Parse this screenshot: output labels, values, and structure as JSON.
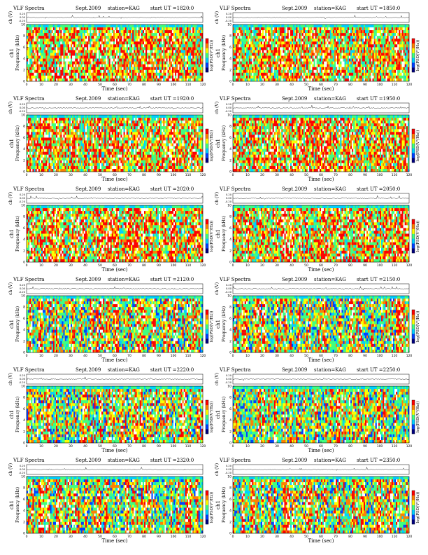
{
  "page": {
    "panels": [
      {
        "title": "VLF Spectra",
        "date": "Sept.2009",
        "station": "station=KAG",
        "start": "start  UT =1820:0",
        "ch": "ch1",
        "xlabel": "Time (sec)",
        "ylabel_ts": "ch (V)",
        "ylabel_spec": "Frequency (kHz)",
        "cbar_label": "log(PSD(V²/Hz))"
      },
      {
        "title": "VLF Spectra",
        "date": "Sept.2009",
        "station": "station=KAG",
        "start": "start  UT =1850:0",
        "ch": "ch1",
        "xlabel": "Time (sec)",
        "ylabel_ts": "ch (V)",
        "ylabel_spec": "Frequency (kHz)",
        "cbar_label": "log(PSD(V²/Hz))"
      },
      {
        "title": "VLF Spectra",
        "date": "Sept.2009",
        "station": "station=KAG",
        "start": "start  UT =1920:0",
        "ch": "ch1",
        "xlabel": "Time (sec)",
        "ylabel_ts": "ch (V)",
        "ylabel_spec": "Frequency (kHz)",
        "cbar_label": "log(PSD(V²/Hz))"
      },
      {
        "title": "VLF Spectra",
        "date": "Sept.2009",
        "station": "station=KAG",
        "start": "start  UT =1950:0",
        "ch": "ch1",
        "xlabel": "Time (sec)",
        "ylabel_ts": "ch (V)",
        "ylabel_spec": "Frequency (kHz)",
        "cbar_label": "log(PSD(V²/Hz))"
      },
      {
        "title": "VLF Spectra",
        "date": "Sept.2009",
        "station": "station=KAG",
        "start": "start  UT =2020:0",
        "ch": "ch1",
        "xlabel": "Time (sec)",
        "ylabel_ts": "ch (V)",
        "ylabel_spec": "Frequency (kHz)",
        "cbar_label": "log(PSD(V²/Hz))"
      },
      {
        "title": "VLF Spectra",
        "date": "Sept.2009",
        "station": "station=KAG",
        "start": "start  UT =2050:0",
        "ch": "ch1",
        "xlabel": "Time (sec)",
        "ylabel_ts": "ch (V)",
        "ylabel_spec": "Frequency (kHz)",
        "cbar_label": "log(PSD(V²/Hz))"
      },
      {
        "title": "VLF Spectra",
        "date": "Sept.2009",
        "station": "station=KAG",
        "start": "start  UT =2120:0",
        "ch": "ch1",
        "xlabel": "Time (sec)",
        "ylabel_ts": "ch (V)",
        "ylabel_spec": "Frequency (kHz)",
        "cbar_label": "log(PSD(V²/Hz))"
      },
      {
        "title": "VLF Spectra",
        "date": "Sept.2009",
        "station": "station=KAG",
        "start": "start  UT =2150:0",
        "ch": "ch1",
        "xlabel": "Time (sec)",
        "ylabel_ts": "ch (V)",
        "ylabel_spec": "Frequency (kHz)",
        "cbar_label": "log(PSD(V²/Hz))"
      },
      {
        "title": "VLF Spectra",
        "date": "Sept.2009",
        "station": "station=KAG",
        "start": "start  UT =2220:0",
        "ch": "ch1",
        "xlabel": "Time (sec)",
        "ylabel_ts": "ch (V)",
        "ylabel_spec": "Frequency (kHz)",
        "cbar_label": "log(PSD(V²/Hz))"
      },
      {
        "title": "VLF Spectra",
        "date": "Sept.2009",
        "station": "station=KAG",
        "start": "start  UT =2250:0",
        "ch": "ch1",
        "xlabel": "Time (sec)",
        "ylabel_ts": "ch (V)",
        "ylabel_spec": "Frequency (kHz)",
        "cbar_label": "log(PSD(V²/Hz))"
      },
      {
        "title": "VLF Spectra",
        "date": "Sept.2009",
        "station": "station=KAG",
        "start": "start  UT =2320:0",
        "ch": "ch1",
        "xlabel": "Time (sec)",
        "ylabel_ts": "ch (V)",
        "ylabel_spec": "Frequency (kHz)",
        "cbar_label": "log(PSD(V²/Hz))"
      },
      {
        "title": "VLF Spectra",
        "date": "Sept.2009",
        "station": "station=KAG",
        "start": "start  UT =2350:0",
        "ch": "ch1",
        "xlabel": "Time (sec)",
        "ylabel_ts": "ch (V)",
        "ylabel_spec": "Frequency (kHz)",
        "cbar_label": "log(PSD(V²/Hz))"
      }
    ]
  },
  "chart_data": [
    {
      "type": "heatmap",
      "start_ut": "1820:0",
      "x": {
        "label": "Time (sec)",
        "range": [
          0,
          120
        ],
        "ticks": [
          0,
          10,
          20,
          30,
          40,
          50,
          60,
          70,
          80,
          90,
          100,
          110,
          120
        ]
      },
      "y": {
        "label": "Frequency (kHz)",
        "range": [
          0,
          10
        ],
        "ticks": [
          0,
          2,
          4,
          6,
          8,
          10
        ]
      },
      "timeseries": {
        "label": "ch (V)",
        "ticks": [
          "0.20",
          "0.00",
          "-0.20"
        ]
      },
      "colorbar": {
        "label": "log(PSD(V²/Hz))",
        "colors": [
          "#00007f",
          "#0040ff",
          "#00d0ff",
          "#40ff80",
          "#ffff00",
          "#ff8000",
          "#ff0000"
        ]
      }
    },
    {
      "type": "heatmap",
      "start_ut": "1850:0",
      "x": {
        "label": "Time (sec)",
        "range": [
          0,
          120
        ],
        "ticks": [
          0,
          10,
          20,
          30,
          40,
          50,
          60,
          70,
          80,
          90,
          100,
          110,
          120
        ]
      },
      "y": {
        "label": "Frequency (kHz)",
        "range": [
          0,
          10
        ],
        "ticks": [
          0,
          2,
          4,
          6,
          8,
          10
        ]
      },
      "timeseries": {
        "label": "ch (V)",
        "ticks": [
          "0.20",
          "0.00",
          "-0.20"
        ]
      },
      "colorbar": {
        "label": "log(PSD(V²/Hz))"
      }
    },
    {
      "type": "heatmap",
      "start_ut": "1920:0",
      "x": {
        "label": "Time (sec)",
        "range": [
          0,
          120
        ],
        "ticks": [
          0,
          10,
          20,
          30,
          40,
          50,
          60,
          70,
          80,
          90,
          100,
          110,
          120
        ]
      },
      "y": {
        "label": "Frequency (kHz)",
        "range": [
          0,
          10
        ],
        "ticks": [
          0,
          2,
          4,
          6,
          8,
          10
        ]
      },
      "timeseries": {
        "label": "ch (V)",
        "ticks": [
          "0.20",
          "0.00",
          "-0.20"
        ]
      },
      "colorbar": {
        "label": "log(PSD(V²/Hz))"
      }
    },
    {
      "type": "heatmap",
      "start_ut": "1950:0",
      "x": {
        "label": "Time (sec)",
        "range": [
          0,
          120
        ],
        "ticks": [
          0,
          10,
          20,
          30,
          40,
          50,
          60,
          70,
          80,
          90,
          100,
          110,
          120
        ]
      },
      "y": {
        "label": "Frequency (kHz)",
        "range": [
          0,
          10
        ],
        "ticks": [
          0,
          2,
          4,
          6,
          8,
          10
        ]
      },
      "timeseries": {
        "label": "ch (V)",
        "ticks": [
          "0.20",
          "0.00",
          "-0.20"
        ]
      },
      "colorbar": {
        "label": "log(PSD(V²/Hz))"
      }
    },
    {
      "type": "heatmap",
      "start_ut": "2020:0",
      "x": {
        "label": "Time (sec)",
        "range": [
          0,
          120
        ],
        "ticks": [
          0,
          10,
          20,
          30,
          40,
          50,
          60,
          70,
          80,
          90,
          100,
          110,
          120
        ]
      },
      "y": {
        "label": "Frequency (kHz)",
        "range": [
          0,
          10
        ],
        "ticks": [
          0,
          2,
          4,
          6,
          8,
          10
        ]
      },
      "timeseries": {
        "label": "ch (V)",
        "ticks": [
          "0.20",
          "0.00",
          "-0.20"
        ]
      },
      "colorbar": {
        "label": "log(PSD(V²/Hz))"
      }
    },
    {
      "type": "heatmap",
      "start_ut": "2050:0",
      "x": {
        "label": "Time (sec)",
        "range": [
          0,
          120
        ],
        "ticks": [
          0,
          10,
          20,
          30,
          40,
          50,
          60,
          70,
          80,
          90,
          100,
          110,
          120
        ]
      },
      "y": {
        "label": "Frequency (kHz)",
        "range": [
          0,
          10
        ],
        "ticks": [
          0,
          2,
          4,
          6,
          8,
          10
        ]
      },
      "timeseries": {
        "label": "ch (V)",
        "ticks": [
          "0.20",
          "0.00",
          "-0.20"
        ]
      },
      "colorbar": {
        "label": "log(PSD(V²/Hz))"
      }
    },
    {
      "type": "heatmap",
      "start_ut": "2120:0",
      "x": {
        "label": "Time (sec)",
        "range": [
          0,
          120
        ],
        "ticks": [
          0,
          10,
          20,
          30,
          40,
          50,
          60,
          70,
          80,
          90,
          100,
          110,
          120
        ]
      },
      "y": {
        "label": "Frequency (kHz)",
        "range": [
          0,
          10
        ],
        "ticks": [
          0,
          2,
          4,
          6,
          8,
          10
        ]
      },
      "timeseries": {
        "label": "ch (V)",
        "ticks": [
          "0.20",
          "0.00",
          "-0.20"
        ]
      },
      "colorbar": {
        "label": "log(PSD(V²/Hz))"
      }
    },
    {
      "type": "heatmap",
      "start_ut": "2150:0",
      "x": {
        "label": "Time (sec)",
        "range": [
          0,
          120
        ],
        "ticks": [
          0,
          10,
          20,
          30,
          40,
          50,
          60,
          70,
          80,
          90,
          100,
          110,
          120
        ]
      },
      "y": {
        "label": "Frequency (kHz)",
        "range": [
          0,
          10
        ],
        "ticks": [
          0,
          2,
          4,
          6,
          8,
          10
        ]
      },
      "timeseries": {
        "label": "ch (V)",
        "ticks": [
          "0.20",
          "0.00",
          "-0.20"
        ]
      },
      "colorbar": {
        "label": "log(PSD(V²/Hz))"
      }
    },
    {
      "type": "heatmap",
      "start_ut": "2220:0",
      "x": {
        "label": "Time (sec)",
        "range": [
          0,
          120
        ],
        "ticks": [
          0,
          10,
          20,
          30,
          40,
          50,
          60,
          70,
          80,
          90,
          100,
          110,
          120
        ]
      },
      "y": {
        "label": "Frequency (kHz)",
        "range": [
          0,
          10
        ],
        "ticks": [
          0,
          2,
          4,
          6,
          8,
          10
        ]
      },
      "timeseries": {
        "label": "ch (V)",
        "ticks": [
          "0.20",
          "0.00",
          "-0.20"
        ]
      },
      "colorbar": {
        "label": "log(PSD(V²/Hz))"
      }
    },
    {
      "type": "heatmap",
      "start_ut": "2250:0",
      "x": {
        "label": "Time (sec)",
        "range": [
          0,
          120
        ],
        "ticks": [
          0,
          10,
          20,
          30,
          40,
          50,
          60,
          70,
          80,
          90,
          100,
          110,
          120
        ]
      },
      "y": {
        "label": "Frequency (kHz)",
        "range": [
          0,
          10
        ],
        "ticks": [
          0,
          2,
          4,
          6,
          8,
          10
        ]
      },
      "timeseries": {
        "label": "ch (V)",
        "ticks": [
          "0.20",
          "0.00",
          "-0.20"
        ]
      },
      "colorbar": {
        "label": "log(PSD(V²/Hz))"
      }
    },
    {
      "type": "heatmap",
      "start_ut": "2320:0",
      "x": {
        "label": "Time (sec)",
        "range": [
          0,
          120
        ],
        "ticks": [
          0,
          10,
          20,
          30,
          40,
          50,
          60,
          70,
          80,
          90,
          100,
          110,
          120
        ]
      },
      "y": {
        "label": "Frequency (kHz)",
        "range": [
          0,
          10
        ],
        "ticks": [
          0,
          2,
          4,
          6,
          8,
          10
        ]
      },
      "timeseries": {
        "label": "ch (V)",
        "ticks": [
          "0.20",
          "0.00",
          "-0.20"
        ]
      },
      "colorbar": {
        "label": "log(PSD(V²/Hz))"
      }
    },
    {
      "type": "heatmap",
      "start_ut": "2350:0",
      "x": {
        "label": "Time (sec)",
        "range": [
          0,
          120
        ],
        "ticks": [
          0,
          10,
          20,
          30,
          40,
          50,
          60,
          70,
          80,
          90,
          100,
          110,
          120
        ]
      },
      "y": {
        "label": "Frequency (kHz)",
        "range": [
          0,
          10
        ],
        "ticks": [
          0,
          2,
          4,
          6,
          8,
          10
        ]
      },
      "timeseries": {
        "label": "ch (V)",
        "ticks": [
          "0.20",
          "0.00",
          "-0.20"
        ]
      },
      "colorbar": {
        "label": "log(PSD(V²/Hz))"
      }
    }
  ]
}
